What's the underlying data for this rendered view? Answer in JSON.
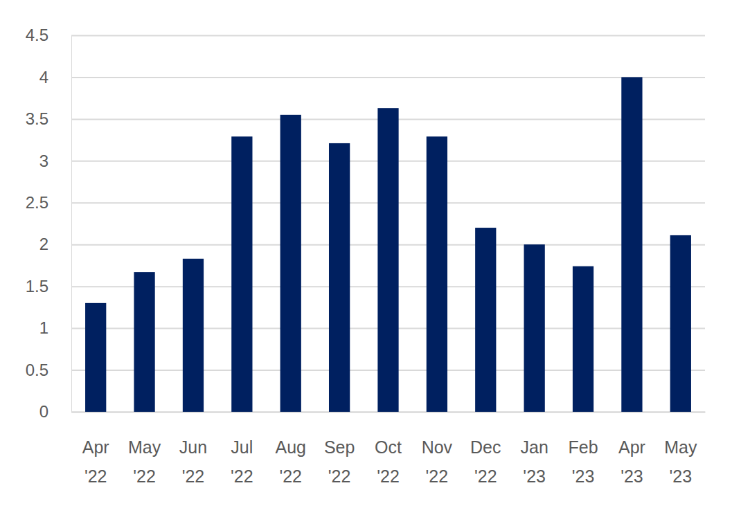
{
  "chart_data": {
    "type": "bar",
    "categories": [
      "Apr '22",
      "May '22",
      "Jun '22",
      "Jul '22",
      "Aug '22",
      "Sep '22",
      "Oct '22",
      "Nov '22",
      "Dec '22",
      "Jan '23",
      "Feb '23",
      "Apr '23",
      "May '23"
    ],
    "values": [
      1.3,
      1.67,
      1.83,
      3.29,
      3.55,
      3.21,
      3.63,
      3.29,
      2.2,
      2.0,
      1.74,
      4.0,
      2.11
    ],
    "color": "#002060",
    "ylim": [
      0,
      4.5
    ],
    "yticks": [
      0,
      0.5,
      1,
      1.5,
      2,
      2.5,
      3,
      3.5,
      4,
      4.5
    ],
    "grid": true
  }
}
